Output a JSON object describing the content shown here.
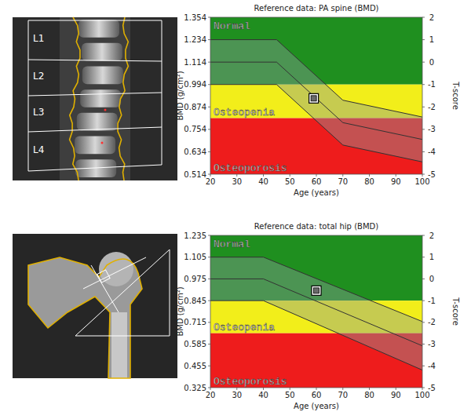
{
  "chart_data": [
    {
      "type": "line",
      "title": "Reference data: PA spine (BMD)",
      "x_label": "Age (years)",
      "y_label": "BMD (g/cm²)",
      "y2_label": "T-score",
      "xlim": [
        20,
        100
      ],
      "xticks": [
        20,
        30,
        40,
        50,
        60,
        70,
        80,
        90,
        100
      ],
      "ylim": [
        0.514,
        1.354
      ],
      "yticks": [
        0.514,
        0.634,
        0.754,
        0.874,
        0.994,
        1.114,
        1.234,
        1.354
      ],
      "y2lim": [
        -5,
        2
      ],
      "y2ticks": [
        -5,
        -4,
        -3,
        -2,
        -1,
        0,
        1,
        2
      ],
      "grid": false,
      "zones": [
        {
          "name": "Normal",
          "from": 0.994,
          "to": 1.354,
          "color": "#1f8f1f"
        },
        {
          "name": "Osteopenia",
          "from": 0.814,
          "to": 0.994,
          "color": "#f2ee1a"
        },
        {
          "name": "Osteoporosis",
          "from": 0.514,
          "to": 0.814,
          "color": "#ee1c1c"
        }
      ],
      "x": [
        20,
        45,
        70,
        100
      ],
      "series": [
        {
          "type": "line",
          "color": "#333333",
          "values": [
            1.234,
            1.234,
            0.91,
            0.82
          ]
        },
        {
          "type": "line",
          "color": "#333333",
          "values": [
            1.114,
            1.114,
            0.79,
            0.7
          ]
        },
        {
          "type": "line",
          "color": "#333333",
          "values": [
            0.994,
            0.994,
            0.67,
            0.58
          ]
        },
        {
          "type": "scatter",
          "marker": "square",
          "color": "#000000",
          "x": [
            59
          ],
          "values": [
            0.92
          ]
        }
      ]
    },
    {
      "type": "line",
      "title": "Reference data: total hip (BMD)",
      "x_label": "Age (years)",
      "y_label": "BMD (g/cm²)",
      "y2_label": "T-score",
      "xlim": [
        20,
        100
      ],
      "xticks": [
        20,
        30,
        40,
        50,
        60,
        70,
        80,
        90,
        100
      ],
      "ylim": [
        0.325,
        1.235
      ],
      "yticks": [
        0.325,
        0.455,
        0.585,
        0.715,
        0.845,
        0.975,
        1.105,
        1.235
      ],
      "y2lim": [
        -5,
        2
      ],
      "y2ticks": [
        -5,
        -4,
        -3,
        -2,
        -1,
        0,
        1,
        2
      ],
      "grid": false,
      "zones": [
        {
          "name": "Normal",
          "from": 0.845,
          "to": 1.235,
          "color": "#1f8f1f"
        },
        {
          "name": "Osteopenia",
          "from": 0.65,
          "to": 0.845,
          "color": "#f2ee1a"
        },
        {
          "name": "Osteoporosis",
          "from": 0.325,
          "to": 0.65,
          "color": "#ee1c1c"
        }
      ],
      "x": [
        20,
        40,
        100
      ],
      "series": [
        {
          "type": "line",
          "color": "#333333",
          "values": [
            1.105,
            1.105,
            0.72
          ]
        },
        {
          "type": "line",
          "color": "#333333",
          "values": [
            0.975,
            0.975,
            0.575
          ]
        },
        {
          "type": "line",
          "color": "#333333",
          "values": [
            0.845,
            0.845,
            0.43
          ]
        },
        {
          "type": "scatter",
          "marker": "square",
          "color": "#000000",
          "x": [
            60
          ],
          "values": [
            0.905
          ]
        }
      ]
    }
  ],
  "spine_scan": {
    "vertebra_labels": [
      "L1",
      "L2",
      "L3",
      "L4"
    ]
  }
}
